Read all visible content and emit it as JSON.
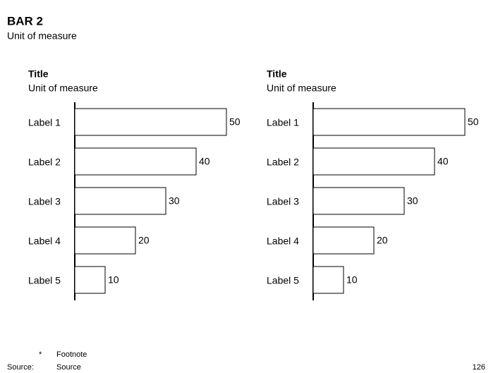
{
  "page": {
    "title": "BAR 2",
    "subtitle": "Unit of measure",
    "footnote_marker": "*",
    "footnote": "Footnote",
    "source_label": "Source:",
    "source": "Source",
    "page_number": "126"
  },
  "chart_data": [
    {
      "type": "bar",
      "orientation": "horizontal",
      "title": "Title",
      "subtitle": "Unit of measure",
      "categories": [
        "Label 1",
        "Label 2",
        "Label 3",
        "Label 4",
        "Label 5"
      ],
      "values": [
        50,
        40,
        30,
        20,
        10
      ],
      "color": "#ffffff",
      "edge_color": "#000000"
    },
    {
      "type": "bar",
      "orientation": "horizontal",
      "title": "Title",
      "subtitle": "Unit of measure",
      "categories": [
        "Label 1",
        "Label 2",
        "Label 3",
        "Label 4",
        "Label 5"
      ],
      "values": [
        50,
        40,
        30,
        20,
        10
      ],
      "color": "#ffffff",
      "edge_color": "#000000"
    }
  ]
}
